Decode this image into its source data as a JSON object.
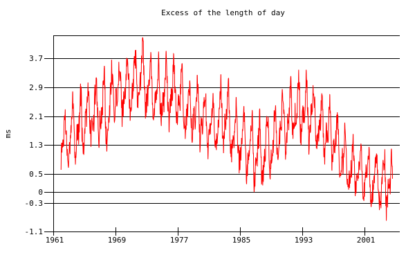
{
  "chart_data": {
    "type": "line",
    "title": "Excess of the length of day",
    "xlabel": "",
    "ylabel": "ms",
    "grid": true,
    "legend": "none",
    "background_color": "#ffffff",
    "axis_color": "#000000",
    "line_color": "#ff0000",
    "xlim": [
      1961,
      2005.5
    ],
    "ylim": [
      -1.1,
      4.34
    ],
    "x_ticks": {
      "values": [
        1961,
        1969,
        1977,
        1985,
        1993,
        2001
      ],
      "labels": [
        "1961",
        "1969",
        "1977",
        "1985",
        "1993",
        "2001"
      ]
    },
    "y_ticks": {
      "values": [
        3.7,
        2.9,
        2.1,
        1.3,
        0.5,
        0,
        -0.3,
        -1.1
      ],
      "labels": [
        "3.7",
        "2.9",
        "2.1",
        "1.3",
        "0.5",
        "0",
        "-0.3",
        "-1.1"
      ]
    },
    "series": [
      {
        "name": "excess-length-of-day",
        "unit": "ms",
        "representation": "dense oscillating daily values between seasonal min/max envelope",
        "x_start": 1962.0,
        "x_end": 2004.6,
        "envelope_years": [
          1962,
          1963,
          1964,
          1965,
          1966,
          1967,
          1968,
          1969,
          1970,
          1971,
          1972,
          1973,
          1974,
          1975,
          1976,
          1977,
          1978,
          1979,
          1980,
          1981,
          1982,
          1983,
          1984,
          1985,
          1986,
          1987,
          1988,
          1989,
          1990,
          1991,
          1992,
          1993,
          1994,
          1995,
          1996,
          1997,
          1998,
          1999,
          2000,
          2001,
          2002,
          2003,
          2004,
          2005
        ],
        "envelope_upper": [
          2.2,
          2.6,
          2.9,
          3.1,
          3.3,
          3.5,
          3.6,
          3.8,
          4.1,
          4.3,
          4.4,
          4.1,
          4.0,
          3.9,
          3.9,
          3.9,
          3.6,
          3.3,
          3.1,
          2.9,
          2.8,
          3.6,
          2.7,
          2.5,
          2.4,
          2.3,
          2.3,
          2.5,
          2.7,
          3.1,
          3.5,
          3.4,
          3.3,
          3.0,
          2.9,
          2.6,
          2.1,
          1.7,
          1.6,
          1.5,
          1.6,
          1.5,
          1.4,
          1.4
        ],
        "envelope_lower": [
          0.3,
          0.35,
          0.55,
          0.7,
          1.0,
          1.1,
          1.1,
          1.4,
          1.7,
          1.85,
          1.9,
          1.75,
          1.65,
          1.55,
          1.6,
          1.55,
          1.3,
          1.15,
          1.0,
          0.9,
          0.8,
          0.95,
          0.5,
          0.3,
          0.15,
          -0.05,
          -0.15,
          0.3,
          0.6,
          0.85,
          1.05,
          1.1,
          1.0,
          0.8,
          0.6,
          0.45,
          -0.05,
          -0.3,
          -0.35,
          -0.45,
          -0.7,
          -0.9,
          -1.05,
          -1.05
        ]
      }
    ]
  }
}
